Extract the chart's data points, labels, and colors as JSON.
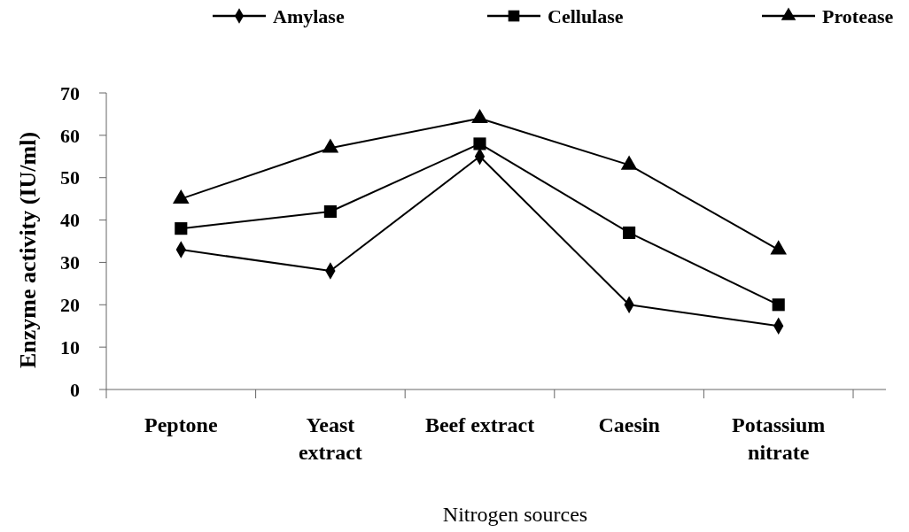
{
  "chart_data": {
    "type": "line",
    "xlabel": "Nitrogen sources",
    "ylabel": "Enzyme activity (IU/ml)",
    "categories": [
      "Peptone",
      "Yeast\nextract",
      "Beef extract",
      "Caesin",
      "Potassium\nnitrate"
    ],
    "series": [
      {
        "name": "Amylase",
        "color": "#000000",
        "marker": "diamond",
        "values": [
          33,
          28,
          55,
          20,
          15
        ]
      },
      {
        "name": "Cellulase",
        "color": "#000000",
        "marker": "square",
        "values": [
          38,
          42,
          58,
          37,
          20
        ]
      },
      {
        "name": "Protease",
        "color": "#000000",
        "marker": "triangle",
        "values": [
          45,
          57,
          64,
          53,
          33
        ]
      }
    ],
    "ylim": [
      0,
      70
    ],
    "yticks": [
      0,
      10,
      20,
      30,
      40,
      50,
      60,
      70
    ],
    "grid": false,
    "legend": "top",
    "line_style": "solid"
  }
}
